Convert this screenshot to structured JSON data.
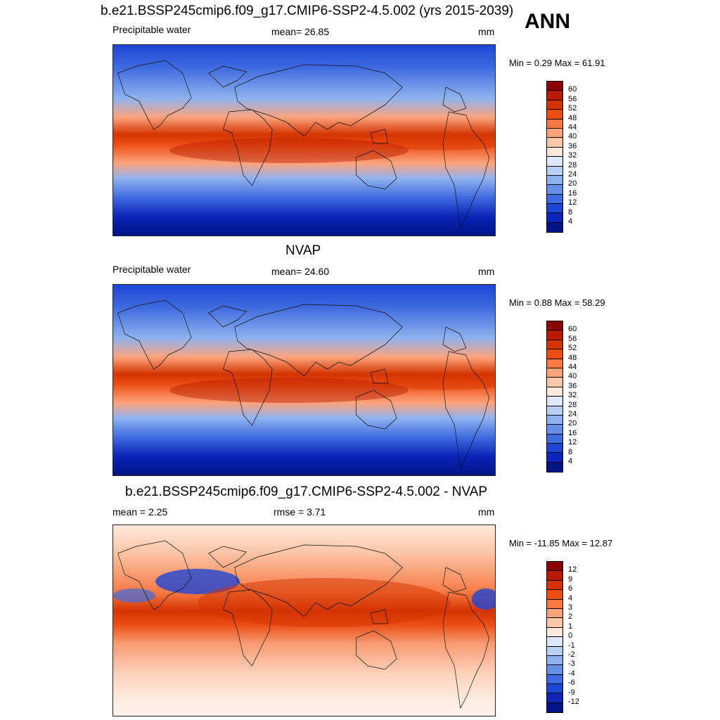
{
  "header": {
    "season": "ANN"
  },
  "panels": [
    {
      "title": "b.e21.BSSP245cmip6.f09_g17.CMIP6-SSP2-4.5.002 (yrs 2015-2039)",
      "left": "Precipitable water",
      "center": "mean=  26.85",
      "right": "mm",
      "minmax": "Min =   0.29 Max =  61.91",
      "colorbar": {
        "labels": [
          "60",
          "56",
          "52",
          "48",
          "44",
          "40",
          "36",
          "32",
          "28",
          "24",
          "20",
          "16",
          "12",
          "8",
          "4"
        ],
        "colors": [
          "#8b0000",
          "#b81a00",
          "#d43300",
          "#ec4d12",
          "#f77a45",
          "#fca37c",
          "#fdc8a8",
          "#fde9dc",
          "#dde9fb",
          "#b8d0f6",
          "#8fb2ef",
          "#6690e8",
          "#3f6be0",
          "#1e46d6",
          "#0a25b8",
          "#001486"
        ]
      }
    },
    {
      "title": "NVAP",
      "left": "Precipitable water",
      "center": "mean=  24.60",
      "right": "mm",
      "minmax": "Min =   0.88 Max =  58.29",
      "colorbar": {
        "labels": [
          "60",
          "56",
          "52",
          "48",
          "44",
          "40",
          "36",
          "32",
          "28",
          "24",
          "20",
          "16",
          "12",
          "8",
          "4"
        ],
        "colors": [
          "#8b0000",
          "#b81a00",
          "#d43300",
          "#ec4d12",
          "#f77a45",
          "#fca37c",
          "#fdc8a8",
          "#fde9dc",
          "#dde9fb",
          "#b8d0f6",
          "#8fb2ef",
          "#6690e8",
          "#3f6be0",
          "#1e46d6",
          "#0a25b8",
          "#001486"
        ]
      }
    },
    {
      "title": "b.e21.BSSP245cmip6.f09_g17.CMIP6-SSP2-4.5.002 - NVAP",
      "left": "mean =   2.25",
      "center": "rmse =   3.71",
      "right": "mm",
      "minmax": "Min = -11.85 Max =  12.87",
      "colorbar": {
        "labels": [
          "12",
          "9",
          "6",
          "4",
          "3",
          "2",
          "1",
          "0",
          "-1",
          "-2",
          "-3",
          "-4",
          "-6",
          "-9",
          "-12"
        ],
        "colors": [
          "#8b0000",
          "#b81a00",
          "#d43300",
          "#ec4d12",
          "#f77a45",
          "#fca37c",
          "#fdc8a8",
          "#fde9dc",
          "#dde9fb",
          "#b8d0f6",
          "#8fb2ef",
          "#6690e8",
          "#3f6be0",
          "#1e46d6",
          "#0a25b8",
          "#001486"
        ]
      }
    }
  ]
}
